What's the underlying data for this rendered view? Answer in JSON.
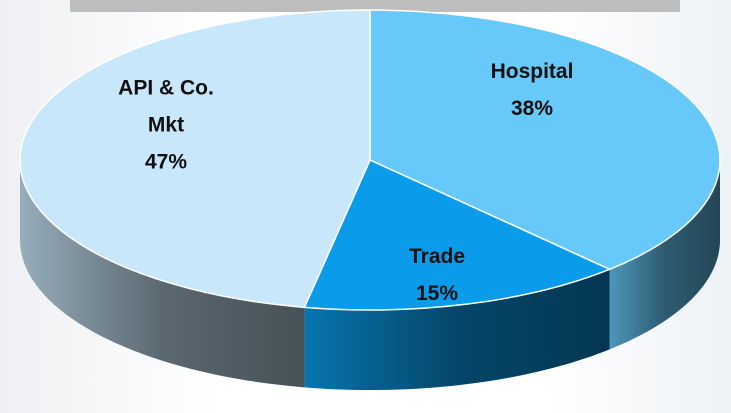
{
  "chart_data": {
    "type": "pie",
    "categories": [
      "Hospital",
      "Trade",
      "API & Co. Mkt"
    ],
    "values": [
      38,
      15,
      47
    ],
    "value_labels": [
      "38%",
      "15%",
      "47%"
    ],
    "colors": [
      "#66c9f9",
      "#0a9cea",
      "#c9e7fa"
    ]
  }
}
